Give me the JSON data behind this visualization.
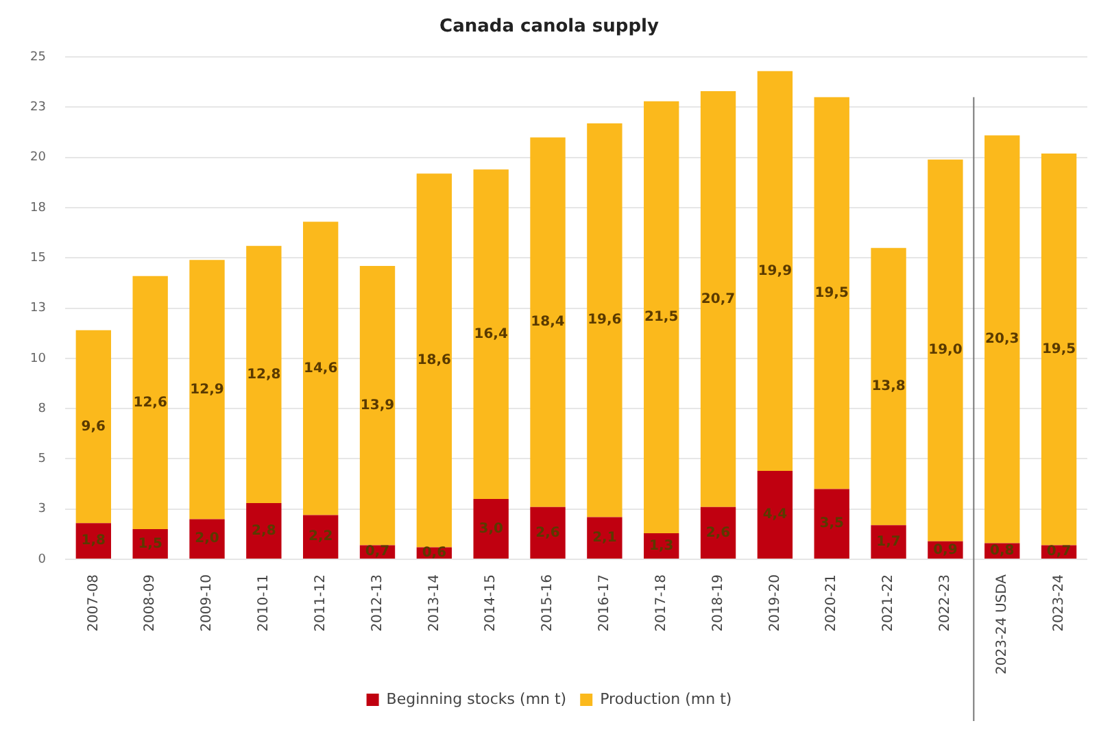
{
  "chart_data": {
    "type": "bar",
    "title": "Canada canola supply",
    "stacked": true,
    "legend": "bottom",
    "grid": "y",
    "categories": [
      "2007-08",
      "2008-09",
      "2009-10",
      "2010-11",
      "2011-12",
      "2012-13",
      "2013-14",
      "2014-15",
      "2015-16",
      "2016-17",
      "2017-18",
      "2018-19",
      "2019-20",
      "2020-21",
      "2021-22",
      "2022-23",
      "2023-24 USDA",
      "2023-24"
    ],
    "series": [
      {
        "name": "Beginning stocks (mn t)",
        "color": "#c00010",
        "values": [
          1.8,
          1.5,
          2.0,
          2.8,
          2.2,
          0.7,
          0.6,
          3.0,
          2.6,
          2.1,
          1.3,
          2.6,
          4.4,
          3.5,
          1.7,
          0.9,
          0.8,
          0.7
        ],
        "value_labels": [
          "1,8",
          "1,5",
          "2,0",
          "2,8",
          "2,2",
          "0,7",
          "0,6",
          "3,0",
          "2,6",
          "2,1",
          "1,3",
          "2,6",
          "4,4",
          "3,5",
          "1,7",
          "0,9",
          "0,8",
          "0,7"
        ]
      },
      {
        "name": "Production (mn t)",
        "color": "#fbb91c",
        "values": [
          9.6,
          12.6,
          12.9,
          12.8,
          14.6,
          13.9,
          18.6,
          16.4,
          18.4,
          19.6,
          21.5,
          20.7,
          19.9,
          19.5,
          13.8,
          19.0,
          20.3,
          19.5
        ],
        "value_labels": [
          "9,6",
          "12,6",
          "12,9",
          "12,8",
          "14,6",
          "13,9",
          "18,6",
          "16,4",
          "18,4",
          "19,6",
          "21,5",
          "20,7",
          "19,9",
          "19,5",
          "13,8",
          "19,0",
          "20,3",
          "19,5"
        ]
      }
    ],
    "ref_lines": [
      {
        "axis": "x",
        "value": "2023-24 USDA",
        "color": "#777777"
      }
    ],
    "ylim": [
      0,
      25
    ],
    "yticks": [
      0,
      {
        "value": 2.5,
        "label": "3"
      },
      5,
      {
        "value": 7.5,
        "label": "8"
      },
      10,
      {
        "value": 12.5,
        "label": "13"
      },
      15,
      {
        "value": 17.5,
        "label": "18"
      },
      20,
      {
        "value": 22.5,
        "label": "23"
      },
      25
    ]
  }
}
